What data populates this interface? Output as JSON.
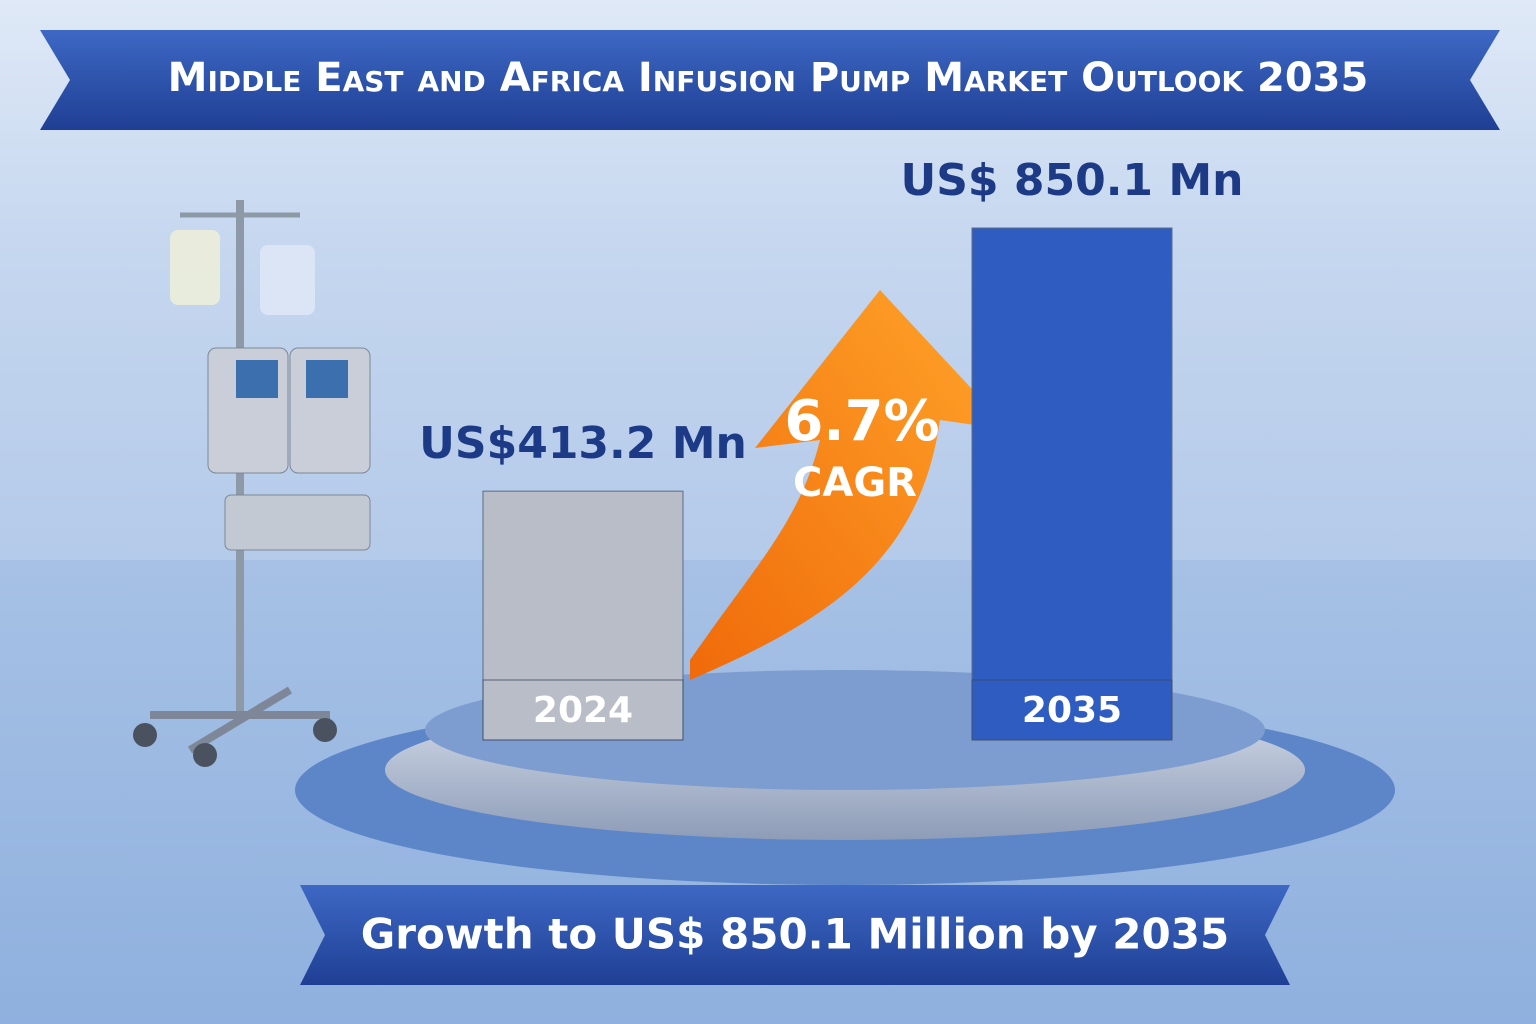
{
  "chart_data": {
    "type": "bar",
    "title": "Middle East and Africa Infusion Pump Market Outlook 2035",
    "categories": [
      "2024",
      "2035"
    ],
    "values": [
      413.2,
      850.1
    ],
    "value_labels": [
      "US$413.2 Mn",
      "US$ 850.1 Mn"
    ],
    "colors": [
      "#b9bdc7",
      "#2f5cc0"
    ],
    "annotations": {
      "cagr_value": "6.7%",
      "cagr_label": "CAGR"
    },
    "footer": "Growth to US$ 850.1 Million by 2035"
  }
}
